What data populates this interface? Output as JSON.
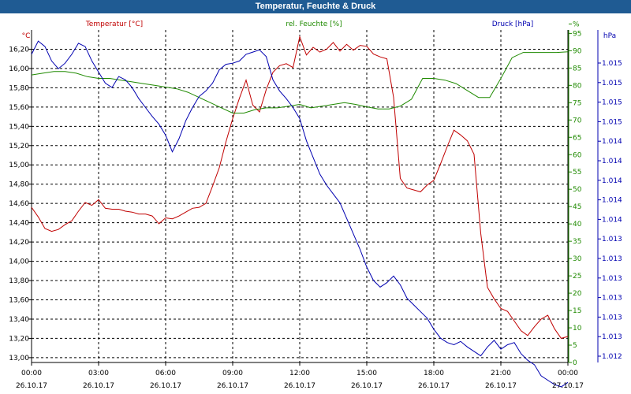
{
  "window": {
    "title": "Temperatur, Feuchte & Druck"
  },
  "chart_data": {
    "type": "line",
    "title": "Temperatur, Feuchte & Druck",
    "grid": true,
    "colors": {
      "temperature": "#c00000",
      "humidity": "#1f8a00",
      "pressure": "#0000b0",
      "titlebar": "#1f5b93"
    },
    "x_tick_labels": [
      {
        "time": "00:00",
        "date": "26.10.17"
      },
      {
        "time": "03:00",
        "date": "26.10.17"
      },
      {
        "time": "06:00",
        "date": "26.10.17"
      },
      {
        "time": "09:00",
        "date": "26.10.17"
      },
      {
        "time": "12:00",
        "date": "26.10.17"
      },
      {
        "time": "15:00",
        "date": "26.10.17"
      },
      {
        "time": "18:00",
        "date": "26.10.17"
      },
      {
        "time": "21:00",
        "date": "26.10.17"
      },
      {
        "time": "00:00",
        "date": "27.10.17"
      }
    ],
    "xlim": [
      0,
      24
    ],
    "axes": {
      "temperature": {
        "unit": "°C",
        "label": "Temperatur [°C]",
        "ylim": [
          12.95,
          16.4
        ],
        "ticks": [
          "13,00",
          "13,20",
          "13,40",
          "13,60",
          "13,80",
          "14,00",
          "14,20",
          "14,40",
          "14,60",
          "14,80",
          "15,00",
          "15,20",
          "15,40",
          "15,60",
          "15,80",
          "16,00",
          "16,20"
        ]
      },
      "humidity": {
        "unit": "%",
        "label": "rel. Feuchte [%]",
        "ylim": [
          0,
          96
        ],
        "ticks": [
          "0",
          "5",
          "10",
          "15",
          "20",
          "25",
          "30",
          "35",
          "40",
          "45",
          "50",
          "55",
          "60",
          "65",
          "70",
          "75",
          "80",
          "85",
          "90",
          "95",
          "%"
        ]
      },
      "pressure": {
        "unit": "hPa",
        "label": "Druck [hPa]",
        "ylim": [
          1012.0,
          1015.0
        ],
        "ticks": [
          "1.012",
          "1.013",
          "1.013",
          "1.013",
          "1.013",
          "1.013",
          "1.013",
          "1.014",
          "1.014",
          "1.014",
          "1.014",
          "1.014",
          "1.015",
          "1.015",
          "1.015",
          "1.015"
        ]
      }
    },
    "series": [
      {
        "name": "Temperatur [°C]",
        "axis": "temperature",
        "x": [
          0,
          0.3,
          0.6,
          0.9,
          1.2,
          1.5,
          1.8,
          2.1,
          2.4,
          2.7,
          3.0,
          3.3,
          3.6,
          3.9,
          4.2,
          4.5,
          4.8,
          5.1,
          5.4,
          5.7,
          6.0,
          6.3,
          6.6,
          6.9,
          7.2,
          7.5,
          7.8,
          8.1,
          8.4,
          8.7,
          9.0,
          9.3,
          9.6,
          9.9,
          10.2,
          10.5,
          10.8,
          11.1,
          11.4,
          11.7,
          12.0,
          12.3,
          12.6,
          12.9,
          13.2,
          13.5,
          13.8,
          14.1,
          14.4,
          14.7,
          15.0,
          15.3,
          15.6,
          15.9,
          16.2,
          16.5,
          16.8,
          17.1,
          17.4,
          17.7,
          18.0,
          18.3,
          18.6,
          18.9,
          19.2,
          19.5,
          19.8,
          20.1,
          20.4,
          20.7,
          21.0,
          21.3,
          21.6,
          21.9,
          22.2,
          22.5,
          22.8,
          23.1,
          23.4,
          23.7,
          24.0
        ],
        "values": [
          14.56,
          14.46,
          14.34,
          14.31,
          14.33,
          14.38,
          14.42,
          14.52,
          14.61,
          14.58,
          14.64,
          14.55,
          14.54,
          14.54,
          14.52,
          14.51,
          14.49,
          14.49,
          14.47,
          14.39,
          14.45,
          14.44,
          14.47,
          14.51,
          14.55,
          14.56,
          14.6,
          14.78,
          14.97,
          15.24,
          15.48,
          15.69,
          15.88,
          15.62,
          15.55,
          15.78,
          15.96,
          16.03,
          16.05,
          16.01,
          16.33,
          16.14,
          16.22,
          16.17,
          16.2,
          16.27,
          16.18,
          16.25,
          16.19,
          16.24,
          16.23,
          16.15,
          16.12,
          16.1,
          15.7,
          14.86,
          14.76,
          14.74,
          14.72,
          14.79,
          14.84,
          15.01,
          15.19,
          15.36,
          15.31,
          15.25,
          15.11,
          14.29,
          13.73,
          13.61,
          13.51,
          13.48,
          13.38,
          13.28,
          13.23,
          13.32,
          13.4,
          13.44,
          13.3,
          13.2,
          13.22
        ]
      },
      {
        "name": "rel. Feuchte [%]",
        "axis": "humidity",
        "x": [
          0,
          0.5,
          1.0,
          1.5,
          2.0,
          2.5,
          3.0,
          3.5,
          4.0,
          4.5,
          5.0,
          5.5,
          6.0,
          6.5,
          7.0,
          7.5,
          8.0,
          8.5,
          9.0,
          9.5,
          10.0,
          10.5,
          11.0,
          11.5,
          12.0,
          12.5,
          13.0,
          13.5,
          14.0,
          14.5,
          15.0,
          15.5,
          16.0,
          16.5,
          17.0,
          17.5,
          18.0,
          18.5,
          19.0,
          19.5,
          20.0,
          20.5,
          21.0,
          21.5,
          22.0,
          22.5,
          23.0,
          23.5,
          24.0
        ],
        "values": [
          83,
          83.5,
          84,
          84,
          83.5,
          82.5,
          82,
          82,
          81.5,
          81,
          80.5,
          80,
          79.5,
          79,
          78,
          76.5,
          75,
          73.5,
          72,
          72,
          73,
          73.5,
          73.5,
          74,
          74.5,
          73.5,
          74,
          74.5,
          75,
          74.5,
          73.8,
          73.2,
          73.2,
          74,
          76,
          82,
          82,
          81.5,
          80.5,
          78.5,
          76.5,
          76.5,
          82,
          88,
          89.5,
          89.5,
          89.5,
          89.5,
          89.7
        ]
      },
      {
        "name": "Druck [hPa]",
        "axis": "pressure",
        "x": [
          0,
          0.3,
          0.6,
          0.9,
          1.2,
          1.5,
          1.8,
          2.1,
          2.4,
          2.7,
          3.0,
          3.3,
          3.6,
          3.9,
          4.2,
          4.5,
          4.8,
          5.1,
          5.4,
          5.7,
          6.0,
          6.3,
          6.6,
          6.9,
          7.2,
          7.5,
          7.8,
          8.1,
          8.4,
          8.7,
          9.0,
          9.3,
          9.6,
          9.9,
          10.2,
          10.5,
          10.8,
          11.1,
          11.4,
          11.7,
          12.0,
          12.3,
          12.6,
          12.9,
          13.2,
          13.5,
          13.8,
          14.1,
          14.4,
          14.7,
          15.0,
          15.3,
          15.6,
          15.9,
          16.2,
          16.5,
          16.8,
          17.1,
          17.4,
          17.7,
          18.0,
          18.3,
          18.6,
          18.9,
          19.2,
          19.5,
          19.8,
          20.1,
          20.4,
          20.7,
          21.0,
          21.3,
          21.6,
          21.9,
          22.2,
          22.5,
          22.8,
          23.1,
          23.4,
          23.7,
          24.0
        ],
        "values": [
          1014.78,
          1014.9,
          1014.85,
          1014.72,
          1014.65,
          1014.7,
          1014.78,
          1014.88,
          1014.85,
          1014.72,
          1014.62,
          1014.52,
          1014.48,
          1014.58,
          1014.55,
          1014.48,
          1014.38,
          1014.3,
          1014.22,
          1014.15,
          1014.05,
          1013.9,
          1014.02,
          1014.18,
          1014.3,
          1014.4,
          1014.45,
          1014.52,
          1014.64,
          1014.69,
          1014.7,
          1014.72,
          1014.78,
          1014.8,
          1014.82,
          1014.76,
          1014.55,
          1014.45,
          1014.38,
          1014.3,
          1014.2,
          1014.0,
          1013.85,
          1013.7,
          1013.6,
          1013.52,
          1013.44,
          1013.3,
          1013.16,
          1013.02,
          1012.86,
          1012.74,
          1012.68,
          1012.72,
          1012.78,
          1012.7,
          1012.58,
          1012.52,
          1012.46,
          1012.4,
          1012.3,
          1012.22,
          1012.18,
          1012.16,
          1012.19,
          1012.14,
          1012.1,
          1012.06,
          1012.14,
          1012.2,
          1012.12,
          1012.16,
          1012.18,
          1012.08,
          1012.02,
          1011.98,
          1011.88,
          1011.84,
          1011.8,
          1011.78,
          1011.82
        ]
      }
    ]
  }
}
